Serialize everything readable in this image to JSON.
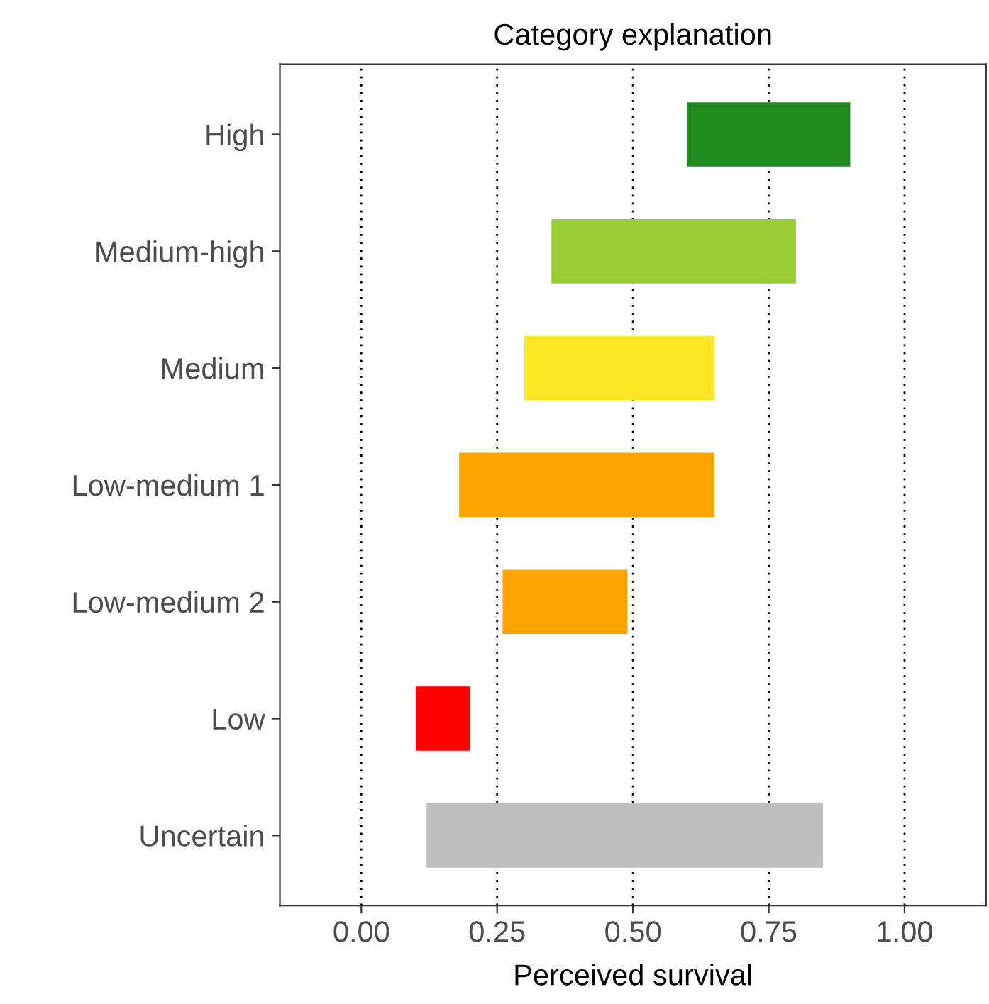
{
  "chart_data": {
    "type": "bar",
    "orientation": "horizontal",
    "title": "Category explanation",
    "xlabel": "Perceived survival",
    "categories": [
      "High",
      "Medium-high",
      "Medium",
      "Low-medium 1",
      "Low-medium 2",
      "Low",
      "Uncertain"
    ],
    "base": [
      0.6,
      0.35,
      0.3,
      0.18,
      0.26,
      0.1,
      0.12
    ],
    "values": [
      0.3,
      0.45,
      0.35,
      0.47,
      0.23,
      0.1,
      0.73
    ],
    "colors": [
      "#228b22",
      "#9acd32",
      "#fde725",
      "#ffa500",
      "#ffa500",
      "#ff0000",
      "#bebebe"
    ],
    "xlim": [
      -0.15,
      1.15
    ],
    "xticks": [
      {
        "value": 0,
        "label": "0.00"
      },
      {
        "value": 0.25,
        "label": "0.25"
      },
      {
        "value": 0.5,
        "label": "0.50"
      },
      {
        "value": 0.75,
        "label": "0.75"
      },
      {
        "value": 1,
        "label": "1.00"
      }
    ],
    "grid": "x"
  }
}
